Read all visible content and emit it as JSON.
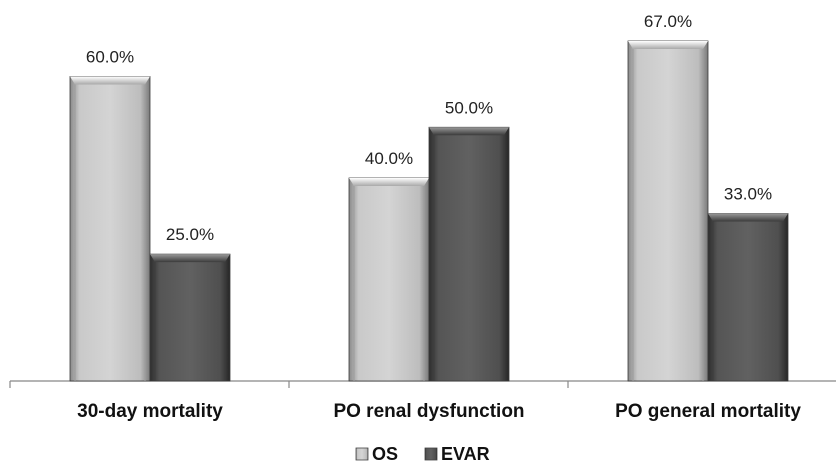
{
  "chart_data": {
    "type": "bar",
    "categories": [
      "30-day mortality",
      "PO renal dysfunction",
      "PO general mortality"
    ],
    "series": [
      {
        "name": "OS",
        "values": [
          60.0,
          40.0,
          67.0
        ],
        "color": "#c4c4c4"
      },
      {
        "name": "EVAR",
        "values": [
          25.0,
          50.0,
          33.0
        ],
        "color": "#5a5a5a"
      }
    ],
    "value_suffix": "%",
    "value_decimals": 1,
    "ylim": [
      0,
      70
    ],
    "grid": false,
    "legend_position": "bottom-center"
  }
}
